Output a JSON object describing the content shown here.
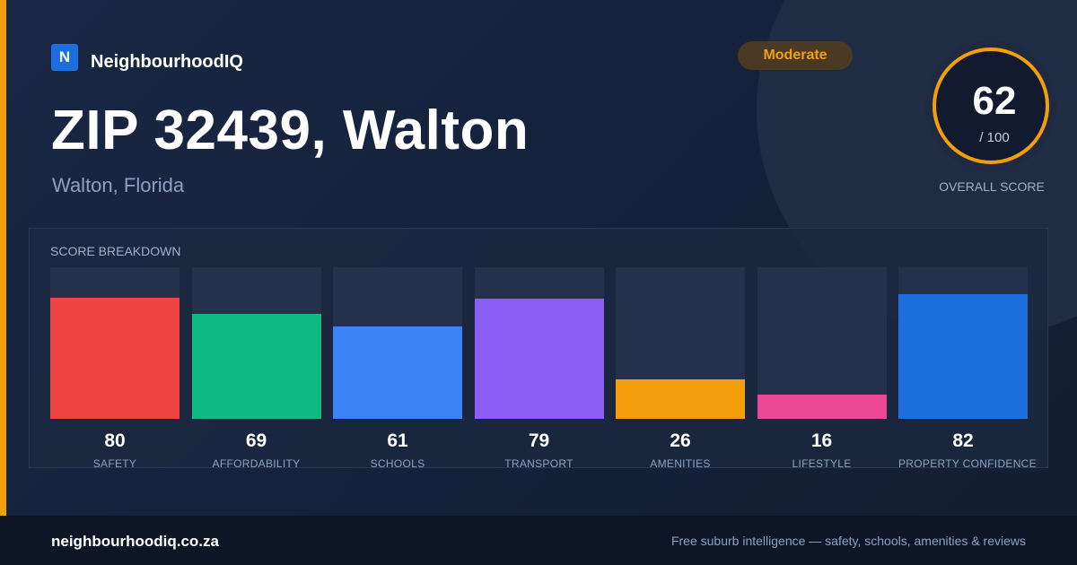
{
  "brand": {
    "icon_letter": "N",
    "name": "NeighbourhoodIQ"
  },
  "badge": {
    "label": "Moderate",
    "color": "#f59e0b"
  },
  "header": {
    "title": "ZIP 32439, Walton",
    "subtitle": "Walton, Florida"
  },
  "overall_score": {
    "value": "62",
    "max": "/ 100",
    "caption": "OVERALL SCORE",
    "ring_color": "#f59e0b"
  },
  "breakdown": {
    "title": "SCORE BREAKDOWN",
    "items": [
      {
        "label": "SAFETY",
        "value": 80,
        "color": "#ef4444"
      },
      {
        "label": "AFFORDABILITY",
        "value": 69,
        "color": "#10b981"
      },
      {
        "label": "SCHOOLS",
        "value": 61,
        "color": "#3b82f6"
      },
      {
        "label": "TRANSPORT",
        "value": 79,
        "color": "#8b5cf6"
      },
      {
        "label": "AMENITIES",
        "value": 26,
        "color": "#f59e0b"
      },
      {
        "label": "LIFESTYLE",
        "value": 16,
        "color": "#ec4899"
      },
      {
        "label": "PROPERTY CONFIDENCE",
        "value": 82,
        "color": "#1d6fe0"
      }
    ]
  },
  "footer": {
    "domain": "neighbourhoodiq.co.za",
    "tagline": "Free suburb intelligence — safety, schools, amenities & reviews"
  }
}
